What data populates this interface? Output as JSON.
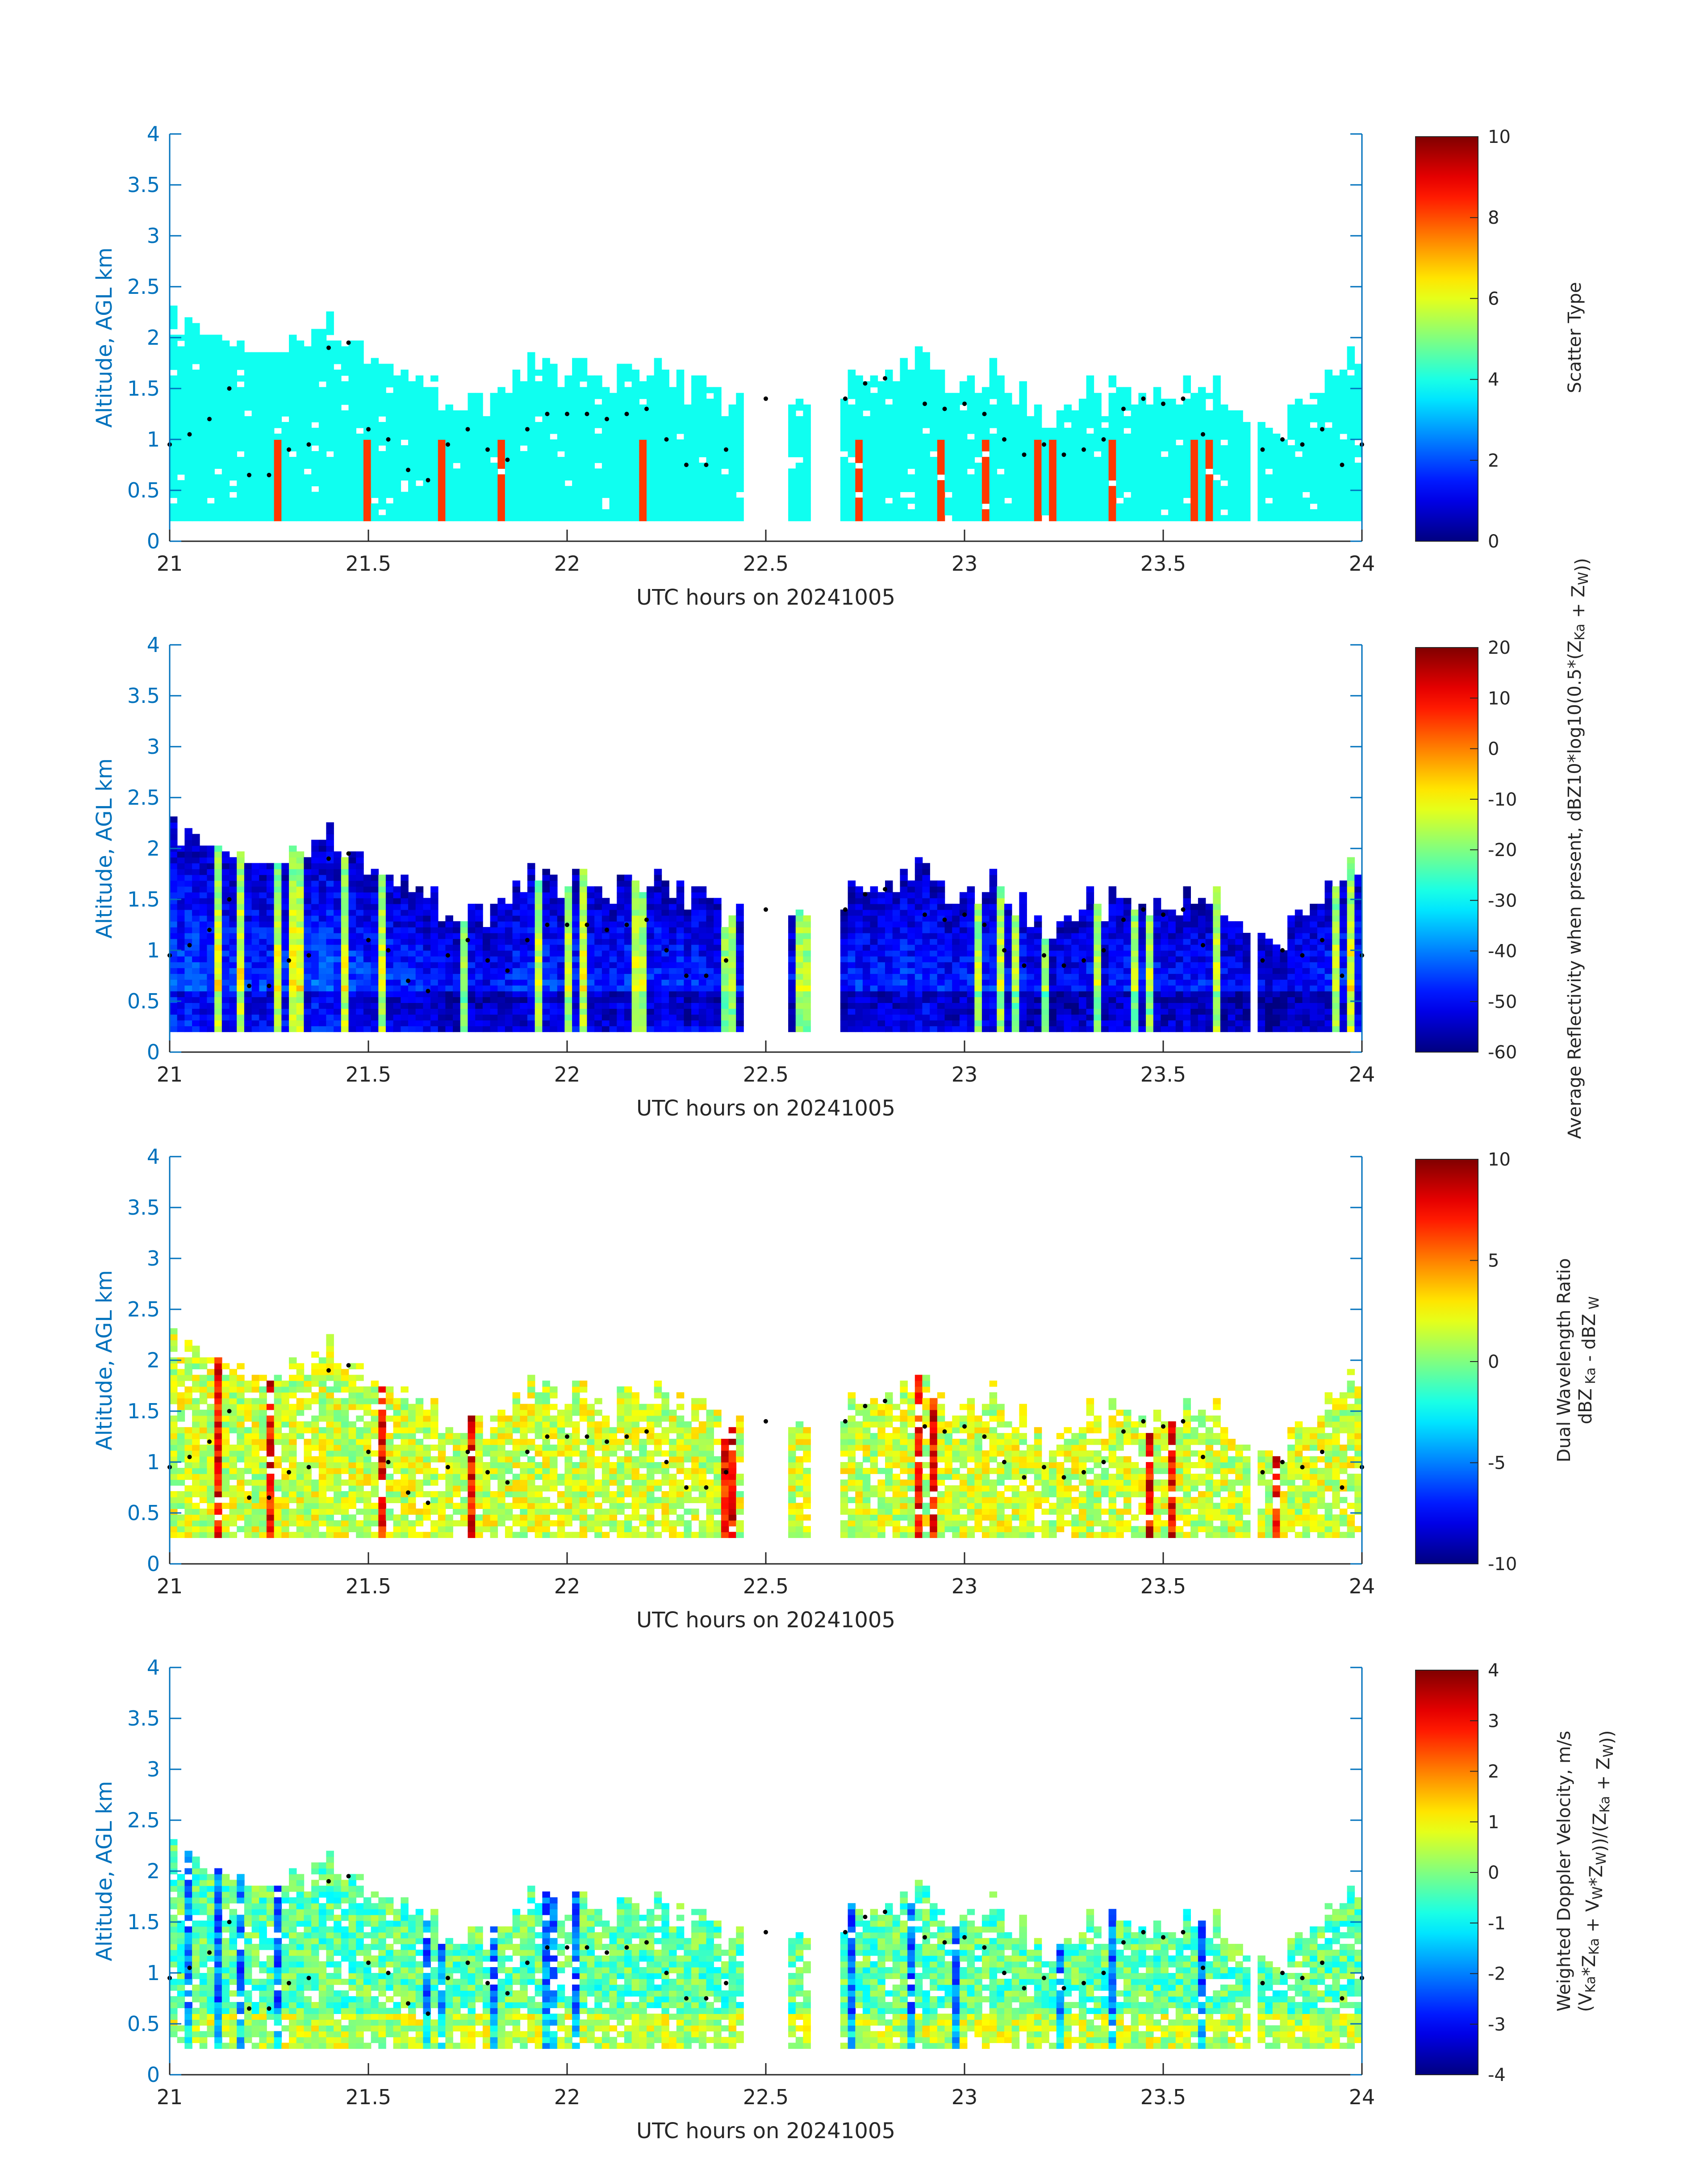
{
  "chart_data": [
    {
      "type": "heatmap",
      "xlabel": "UTC hours on 20241005",
      "ylabel": "Altitude, AGL km",
      "xlim": [
        21,
        24
      ],
      "ylim": [
        0,
        4
      ],
      "x_ticks": [
        "21",
        "21.5",
        "22",
        "22.5",
        "23",
        "23.5",
        "24"
      ],
      "y_ticks": [
        "0",
        "0.5",
        "1",
        "1.5",
        "2",
        "2.5",
        "3",
        "3.5",
        "4"
      ],
      "colorbar": {
        "label": "Scatter Type",
        "label_parts": [
          [
            "Scatter Type",
            ""
          ]
        ],
        "range": [
          0,
          10
        ],
        "ticks": [
          "0",
          "2",
          "4",
          "6",
          "8",
          "10"
        ],
        "colormap": "jet"
      },
      "field": "scatter_type",
      "dominant_value": 3.9,
      "secondary_value": 8.2,
      "cloud_top_profile": [
        [
          21.0,
          2.3
        ],
        [
          21.1,
          2.3
        ],
        [
          21.2,
          2.1
        ],
        [
          21.3,
          2.1
        ],
        [
          21.4,
          2.3
        ],
        [
          21.5,
          2.0
        ],
        [
          21.6,
          1.9
        ],
        [
          21.7,
          1.5
        ],
        [
          21.8,
          1.5
        ],
        [
          21.9,
          1.9
        ],
        [
          22.0,
          1.8
        ],
        [
          22.1,
          1.7
        ],
        [
          22.2,
          1.9
        ],
        [
          22.3,
          1.7
        ],
        [
          22.4,
          1.5
        ],
        [
          22.5,
          1.6
        ],
        [
          22.6,
          1.5
        ],
        [
          22.7,
          1.7
        ],
        [
          22.8,
          1.7
        ],
        [
          22.9,
          1.9
        ],
        [
          23.0,
          1.7
        ],
        [
          23.1,
          1.8
        ],
        [
          23.2,
          1.3
        ],
        [
          23.3,
          1.6
        ],
        [
          23.4,
          1.6
        ],
        [
          23.5,
          1.6
        ],
        [
          23.6,
          1.7
        ],
        [
          23.7,
          1.5
        ],
        [
          23.8,
          1.3
        ],
        [
          23.9,
          1.7
        ],
        [
          24.0,
          2.0
        ]
      ],
      "gaps": [
        [
          22.45,
          22.55
        ],
        [
          22.62,
          22.68
        ],
        [
          23.72,
          23.74
        ]
      ],
      "cloud_base_dots": [
        [
          21.0,
          0.95
        ],
        [
          21.05,
          1.05
        ],
        [
          21.1,
          1.2
        ],
        [
          21.15,
          1.5
        ],
        [
          21.2,
          0.65
        ],
        [
          21.25,
          0.65
        ],
        [
          21.3,
          0.9
        ],
        [
          21.35,
          0.95
        ],
        [
          21.4,
          1.9
        ],
        [
          21.45,
          1.95
        ],
        [
          21.5,
          1.1
        ],
        [
          21.55,
          1.0
        ],
        [
          21.6,
          0.7
        ],
        [
          21.65,
          0.6
        ],
        [
          21.7,
          0.95
        ],
        [
          21.75,
          1.1
        ],
        [
          21.8,
          0.9
        ],
        [
          21.85,
          0.8
        ],
        [
          21.9,
          1.1
        ],
        [
          21.95,
          1.25
        ],
        [
          22.0,
          1.25
        ],
        [
          22.05,
          1.25
        ],
        [
          22.1,
          1.2
        ],
        [
          22.15,
          1.25
        ],
        [
          22.2,
          1.3
        ],
        [
          22.25,
          1.0
        ],
        [
          22.3,
          0.75
        ],
        [
          22.35,
          0.75
        ],
        [
          22.4,
          0.9
        ],
        [
          22.5,
          1.4
        ],
        [
          22.7,
          1.4
        ],
        [
          22.75,
          1.55
        ],
        [
          22.8,
          1.6
        ],
        [
          22.9,
          1.35
        ],
        [
          22.95,
          1.3
        ],
        [
          23.0,
          1.35
        ],
        [
          23.05,
          1.25
        ],
        [
          23.1,
          1.0
        ],
        [
          23.15,
          0.85
        ],
        [
          23.2,
          0.95
        ],
        [
          23.25,
          0.85
        ],
        [
          23.3,
          0.9
        ],
        [
          23.35,
          1.0
        ],
        [
          23.4,
          1.3
        ],
        [
          23.45,
          1.4
        ],
        [
          23.5,
          1.35
        ],
        [
          23.55,
          1.4
        ],
        [
          23.6,
          1.05
        ],
        [
          23.75,
          0.9
        ],
        [
          23.8,
          1.0
        ],
        [
          23.85,
          0.95
        ],
        [
          23.9,
          1.1
        ],
        [
          23.95,
          0.75
        ],
        [
          24.0,
          0.95
        ]
      ]
    },
    {
      "type": "heatmap",
      "xlabel": "UTC hours on 20241005",
      "ylabel": "Altitude, AGL km",
      "xlim": [
        21,
        24
      ],
      "ylim": [
        0,
        4
      ],
      "x_ticks": [
        "21",
        "21.5",
        "22",
        "22.5",
        "23",
        "23.5",
        "24"
      ],
      "y_ticks": [
        "0",
        "0.5",
        "1",
        "1.5",
        "2",
        "2.5",
        "3",
        "3.5",
        "4"
      ],
      "colorbar": {
        "label": "Average Reflectivity when present, dBZ 10*log10(0.5*(Z_Ka + Z_W))",
        "label_parts": [
          [
            "Average Reflectivity when present, dBZ",
            ""
          ],
          [
            "10*log10(0.5*(Z",
            ""
          ],
          [
            "Ka",
            "sub"
          ],
          [
            " + Z",
            ""
          ],
          [
            "W",
            "sub"
          ],
          [
            "))",
            ""
          ]
        ],
        "range": [
          -60,
          20
        ],
        "ticks": [
          "-60",
          "-50",
          "-40",
          "-30",
          "-20",
          "-10",
          "0",
          "10",
          "20"
        ],
        "colormap": "jet"
      },
      "field": "reflectivity"
    },
    {
      "type": "heatmap",
      "xlabel": "UTC hours on 20241005",
      "ylabel": "Altitude, AGL km",
      "xlim": [
        21,
        24
      ],
      "ylim": [
        0,
        4
      ],
      "x_ticks": [
        "21",
        "21.5",
        "22",
        "22.5",
        "23",
        "23.5",
        "24"
      ],
      "y_ticks": [
        "0",
        "0.5",
        "1",
        "1.5",
        "2",
        "2.5",
        "3",
        "3.5",
        "4"
      ],
      "colorbar": {
        "label": "Dual Wavelength Ratio dBZ Ka - dBZ W",
        "label_parts": [
          [
            "Dual Wavelength Ratio",
            ""
          ],
          [
            "dBZ",
            ""
          ],
          [
            " Ka",
            "sub"
          ],
          [
            " - dBZ",
            ""
          ],
          [
            " W",
            "sub"
          ]
        ],
        "range": [
          -10,
          10
        ],
        "ticks": [
          "-10",
          "-5",
          "0",
          "5",
          "10"
        ],
        "colormap": "jet"
      },
      "field": "dwr"
    },
    {
      "type": "heatmap",
      "xlabel": "UTC hours on 20241005",
      "ylabel": "Altitude, AGL km",
      "xlim": [
        21,
        24
      ],
      "ylim": [
        0,
        4
      ],
      "x_ticks": [
        "21",
        "21.5",
        "22",
        "22.5",
        "23",
        "23.5",
        "24"
      ],
      "y_ticks": [
        "0",
        "0.5",
        "1",
        "1.5",
        "2",
        "2.5",
        "3",
        "3.5",
        "4"
      ],
      "colorbar": {
        "label": "Weighted Doppler Velocity, m/s (V_Ka*Z_Ka + V_W*Z_W))/(Z_Ka + Z_W))",
        "label_parts": [
          [
            "Weighted Doppler Velocity, m/s",
            ""
          ],
          [
            "(V",
            ""
          ],
          [
            "Ka",
            "sub"
          ],
          [
            "*Z",
            ""
          ],
          [
            "Ka",
            "sub"
          ],
          [
            " + V",
            ""
          ],
          [
            "W",
            "sub"
          ],
          [
            "*Z",
            ""
          ],
          [
            "W",
            "sub"
          ],
          [
            "))/(Z",
            ""
          ],
          [
            "Ka",
            "sub"
          ],
          [
            " + Z",
            ""
          ],
          [
            "W",
            "sub"
          ],
          [
            "))",
            ""
          ]
        ],
        "range": [
          -4,
          4
        ],
        "ticks": [
          "-4",
          "-3",
          "-2",
          "-1",
          "0",
          "1",
          "2",
          "3",
          "4"
        ],
        "colormap": "jet"
      },
      "field": "velocity"
    }
  ]
}
